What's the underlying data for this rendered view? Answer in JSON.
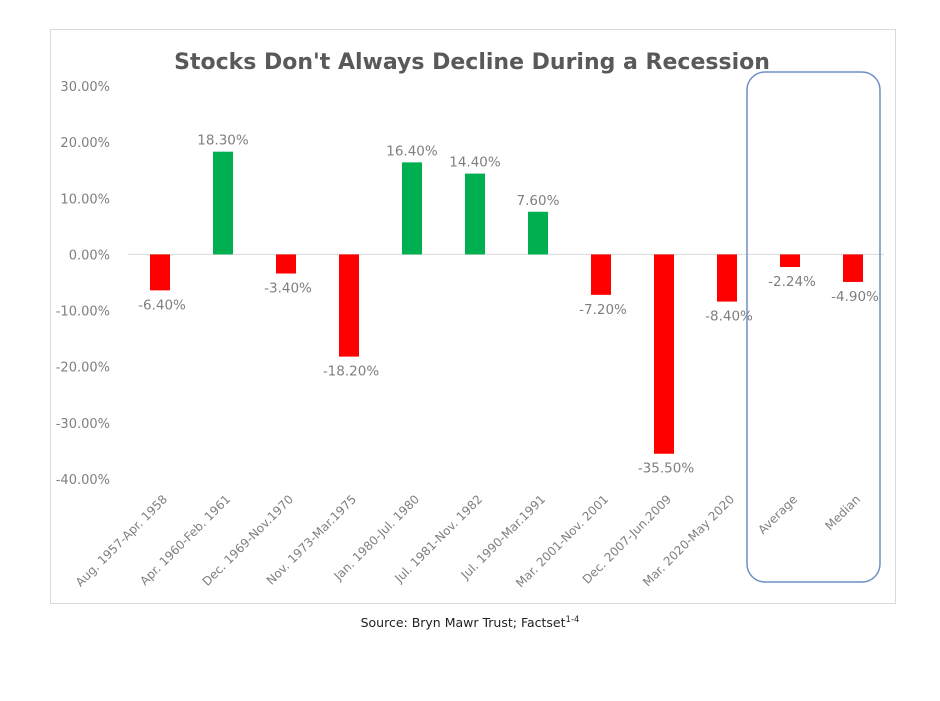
{
  "chart_data": {
    "type": "bar",
    "title": "Stocks Don't Always Decline During a Recession",
    "xlabel": "",
    "ylabel": "",
    "ylim": [
      -40,
      30
    ],
    "yticks": [
      30,
      20,
      10,
      0,
      -10,
      -20,
      -30,
      -40
    ],
    "ytick_labels": [
      "30.00%",
      "20.00%",
      "10.00%",
      "0.00%",
      "-10.00%",
      "-20.00%",
      "-30.00%",
      "-40.00%"
    ],
    "grid": false,
    "legend": "none",
    "categories": [
      "Aug. 1957-Apr. 1958",
      "Apr. 1960-Feb. 1961",
      "Dec. 1969-Nov.1970",
      "Nov. 1973-Mar.1975",
      "Jan. 1980-Jul. 1980",
      "Jul. 1981-Nov. 1982",
      "Jul. 1990-Mar.1991",
      "Mar. 2001-Nov. 2001",
      "Dec. 2007-Jun.2009",
      "Mar. 2020-May 2020",
      "Average",
      "Median"
    ],
    "values": [
      -6.4,
      18.3,
      -3.4,
      -18.2,
      16.4,
      14.4,
      7.6,
      -7.2,
      -35.5,
      -8.4,
      -2.24,
      -4.9
    ],
    "data_labels": [
      "-6.40%",
      "18.30%",
      "-3.40%",
      "-18.20%",
      "16.40%",
      "14.40%",
      "7.60%",
      "-7.20%",
      "-35.50%",
      "-8.40%",
      "-2.24%",
      "-4.90%"
    ],
    "colors": {
      "positive": "#00b050",
      "negative": "#ff0000",
      "highlight_box": "#6f8fc4"
    },
    "annotations": [
      {
        "type": "rounded-box",
        "encloses": [
          "Average",
          "Median"
        ]
      }
    ]
  },
  "source": {
    "text": "Source: Bryn Mawr Trust; Factset",
    "superscript": "1-4"
  }
}
